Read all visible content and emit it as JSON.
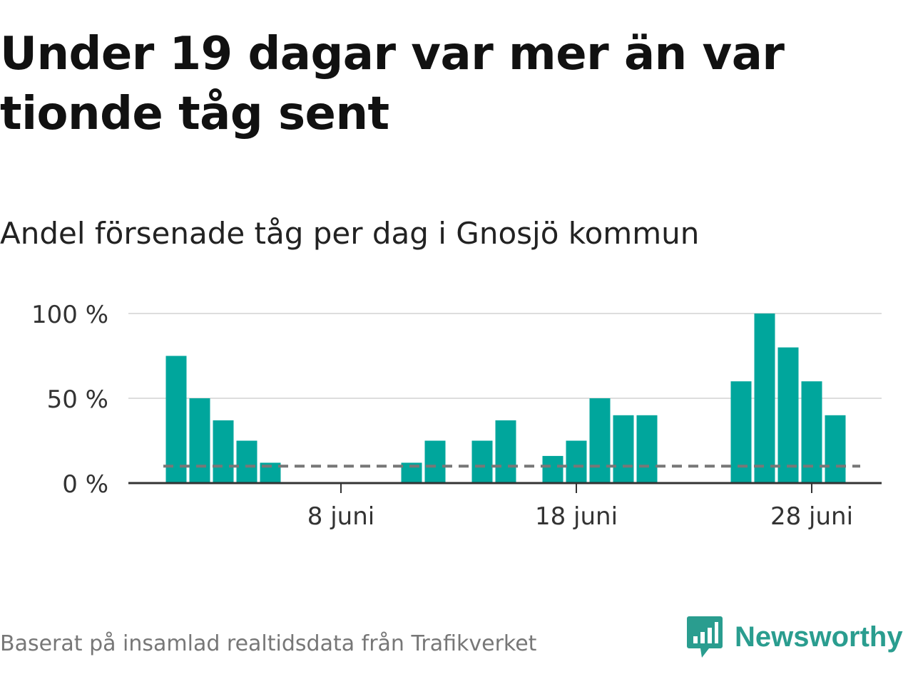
{
  "title": "Under 19 dagar var mer än var tionde tåg sent",
  "subtitle": "Andel försenade tåg per dag i Gnosjö kommun",
  "footer": {
    "source": "Baserat på insamlad realtidsdata från Trafikverket",
    "brand": "Newsworthy",
    "brand_icon": "newsworthy-bar-chart-logo-icon"
  },
  "colors": {
    "bar": "#00a69c",
    "grid": "#dddddd",
    "axis": "#333333",
    "reference_line": "#777777",
    "brand": "#2a9d8f"
  },
  "chart_data": {
    "type": "bar",
    "x": [
      1,
      2,
      3,
      4,
      5,
      6,
      7,
      8,
      9,
      10,
      11,
      12,
      13,
      14,
      15,
      16,
      17,
      18,
      19,
      20,
      21,
      22,
      23,
      24,
      25,
      26,
      27,
      28,
      29,
      30
    ],
    "values": [
      75,
      50,
      37,
      25,
      12,
      0,
      0,
      0,
      0,
      0,
      12,
      25,
      0,
      25,
      37,
      0,
      16,
      25,
      50,
      40,
      40,
      0,
      0,
      0,
      60,
      100,
      80,
      60,
      40,
      0
    ],
    "x_ticks": [
      8,
      18,
      28
    ],
    "x_tick_labels": [
      "8 juni",
      "18 juni",
      "28 juni"
    ],
    "y_ticks": [
      0,
      50,
      100
    ],
    "y_tick_labels": [
      "0 %",
      "50 %",
      "100 %"
    ],
    "ylim": [
      0,
      100
    ],
    "reference_line": 10,
    "grid": true,
    "xlabel": "",
    "ylabel": ""
  }
}
